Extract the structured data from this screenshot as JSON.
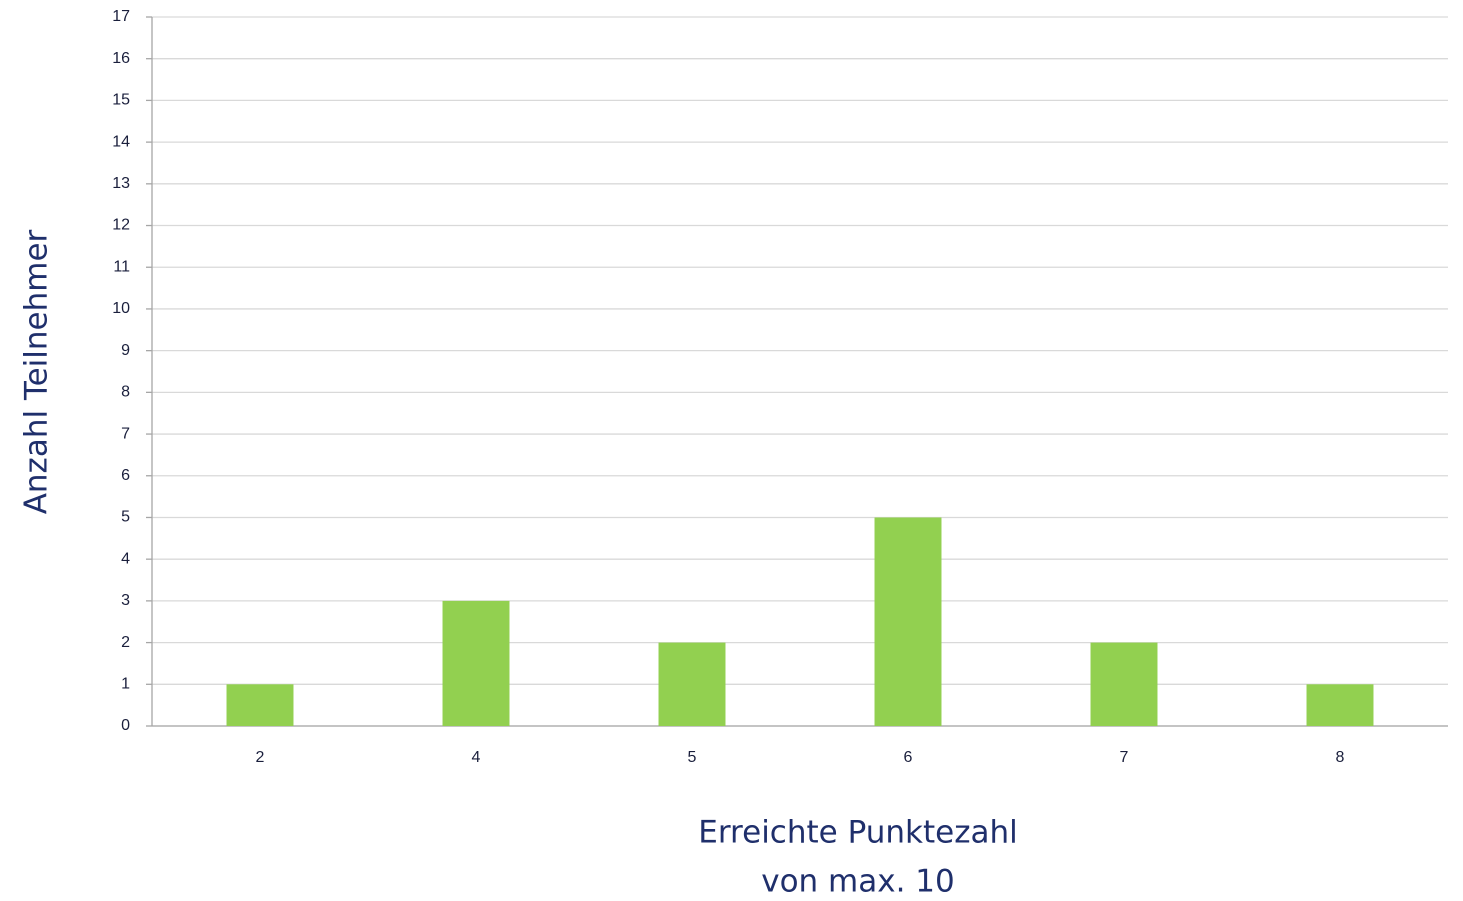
{
  "chart_data": {
    "type": "bar",
    "x_label": [
      "Erreichte Punktezahl",
      "von max. 10"
    ],
    "y_label": "Anzahl Teilnehmer",
    "categories": [
      "2",
      "4",
      "5",
      "6",
      "7",
      "8"
    ],
    "values": [
      1,
      3,
      2,
      5,
      2,
      1
    ],
    "color": "#92d050",
    "ylim": [
      0,
      17
    ],
    "yticks": [
      0,
      1,
      2,
      3,
      4,
      5,
      6,
      7,
      8,
      9,
      10,
      11,
      12,
      13,
      14,
      15,
      16,
      17
    ],
    "grid": true
  }
}
